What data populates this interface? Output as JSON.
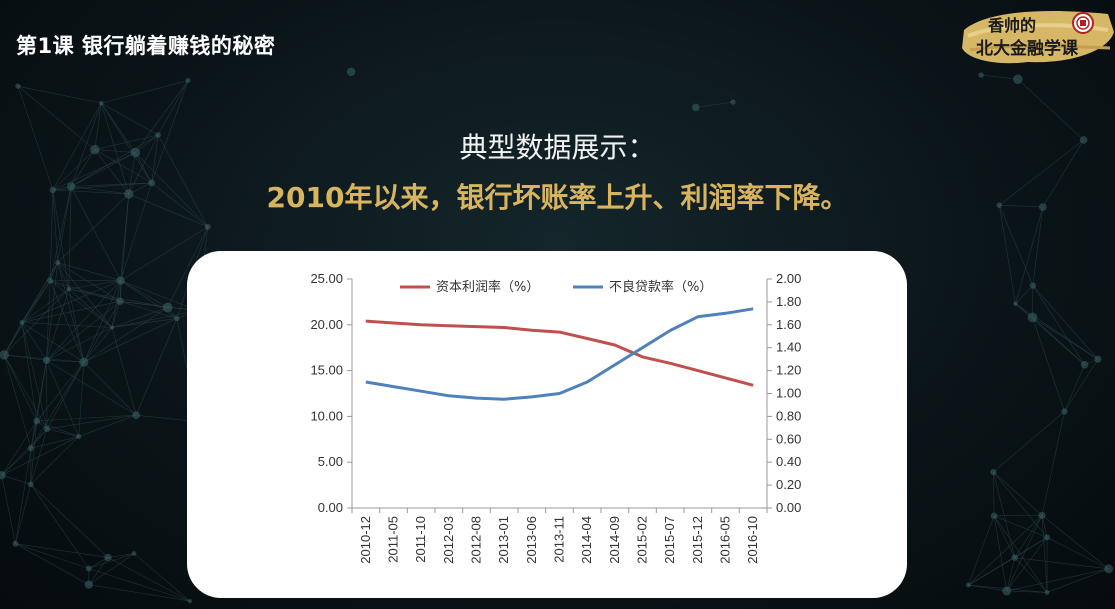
{
  "header": {
    "lesson_title": "第1课 银行躺着赚钱的秘密",
    "logo_line1": "香帅的",
    "logo_line2": "北大金融学课"
  },
  "slide": {
    "headline": "典型数据展示：",
    "subheadline": "2010年以来，银行坏账率上升、利润率下降。"
  },
  "colors": {
    "accent_gold": "#d8b45e",
    "profit_series": "#c0504d",
    "npl_series": "#4f81bd",
    "seal_red": "#b22222"
  },
  "chart_data": {
    "type": "line",
    "x": [
      "2010-12",
      "2011-05",
      "2011-10",
      "2012-03",
      "2012-08",
      "2013-01",
      "2013-06",
      "2013-11",
      "2014-04",
      "2014-09",
      "2015-02",
      "2015-07",
      "2015-12",
      "2016-05",
      "2016-10"
    ],
    "y_left": {
      "ylim": [
        0,
        25
      ],
      "ticks": [
        "0.00",
        "5.00",
        "10.00",
        "15.00",
        "20.00",
        "25.00"
      ]
    },
    "y_right": {
      "ylim": [
        0,
        2
      ],
      "ticks": [
        "0.00",
        "0.20",
        "0.40",
        "0.60",
        "0.80",
        "1.00",
        "1.20",
        "1.40",
        "1.60",
        "1.80",
        "2.00"
      ]
    },
    "grid": false,
    "legend_position": "top",
    "series": [
      {
        "name": "资本利润率（%）",
        "axis": "left",
        "color": "#c0504d",
        "values": [
          20.4,
          20.2,
          20.0,
          19.9,
          19.8,
          19.7,
          19.4,
          19.2,
          18.5,
          17.8,
          16.5,
          15.8,
          15.0,
          14.2,
          13.4
        ]
      },
      {
        "name": "不良贷款率（%）",
        "axis": "right",
        "color": "#4f81bd",
        "values": [
          1.1,
          1.06,
          1.02,
          0.98,
          0.96,
          0.95,
          0.97,
          1.0,
          1.1,
          1.25,
          1.4,
          1.55,
          1.67,
          1.7,
          1.74
        ]
      }
    ]
  }
}
